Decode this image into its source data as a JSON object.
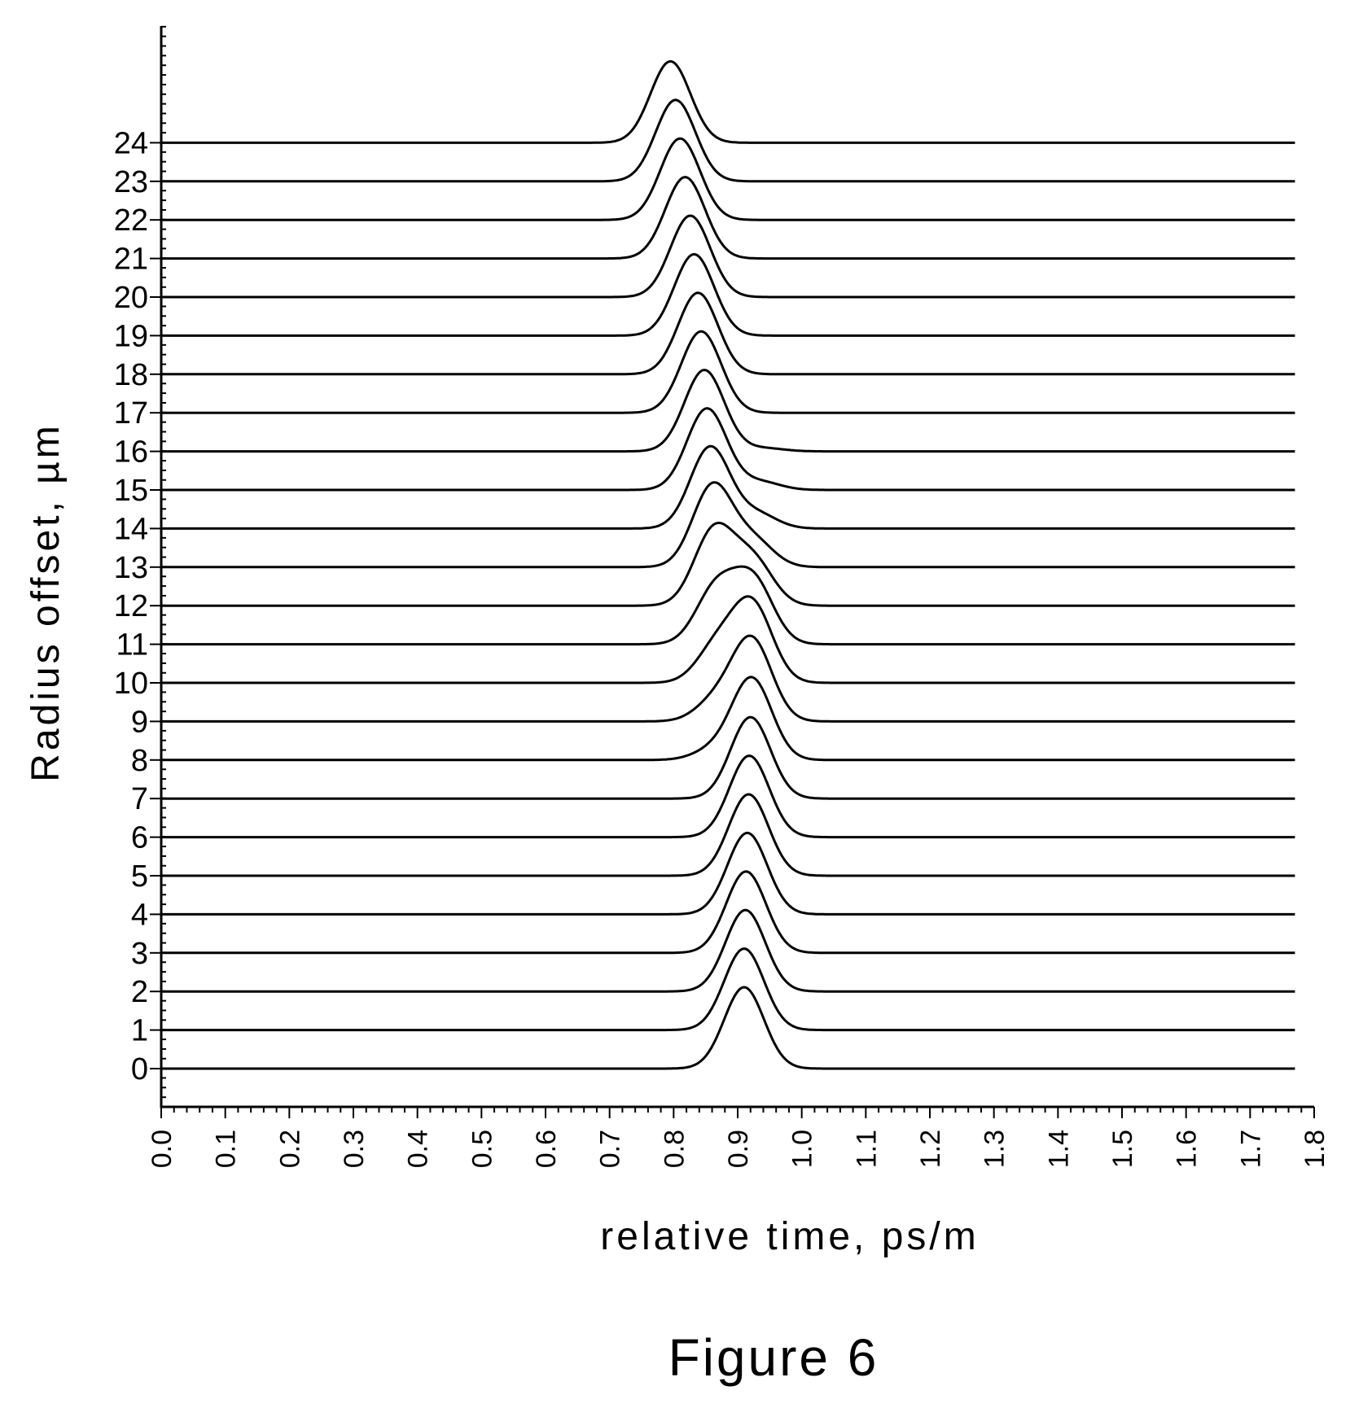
{
  "figure": {
    "caption": "Figure 6"
  },
  "chart_data": {
    "type": "line",
    "title": "",
    "xlabel": "relative time, ps/m",
    "ylabel": "Radius offset, µm",
    "xlim": [
      0.0,
      1.8
    ],
    "x_ticks": [
      "0.0",
      "0.1",
      "0.2",
      "0.3",
      "0.4",
      "0.5",
      "0.6",
      "0.7",
      "0.8",
      "0.9",
      "1.0",
      "1.1",
      "1.2",
      "1.3",
      "1.4",
      "1.5",
      "1.6",
      "1.7",
      "1.8"
    ],
    "y_ticks": [
      "0",
      "1",
      "2",
      "3",
      "4",
      "5",
      "6",
      "7",
      "8",
      "9",
      "10",
      "11",
      "12",
      "13",
      "14",
      "15",
      "16",
      "17",
      "18",
      "19",
      "20",
      "21",
      "22",
      "23",
      "24"
    ],
    "grid": false,
    "legend": "none",
    "trace_x_range": [
      0.0,
      1.77
    ],
    "series": [
      {
        "offset": 0,
        "peaks": [
          {
            "t": 0.91,
            "amp": 1.0
          }
        ]
      },
      {
        "offset": 1,
        "peaks": [
          {
            "t": 0.91,
            "amp": 1.0
          }
        ]
      },
      {
        "offset": 2,
        "peaks": [
          {
            "t": 0.912,
            "amp": 1.0
          }
        ]
      },
      {
        "offset": 3,
        "peaks": [
          {
            "t": 0.913,
            "amp": 1.0
          }
        ]
      },
      {
        "offset": 4,
        "peaks": [
          {
            "t": 0.915,
            "amp": 1.0
          }
        ]
      },
      {
        "offset": 5,
        "peaks": [
          {
            "t": 0.917,
            "amp": 1.0
          }
        ]
      },
      {
        "offset": 6,
        "peaks": [
          {
            "t": 0.918,
            "amp": 1.0
          }
        ]
      },
      {
        "offset": 7,
        "peaks": [
          {
            "t": 0.92,
            "amp": 1.0
          }
        ]
      },
      {
        "offset": 8,
        "peaks": [
          {
            "t": 0.922,
            "amp": 1.0
          },
          {
            "t": 0.862,
            "amp": 0.12
          }
        ]
      },
      {
        "offset": 9,
        "peaks": [
          {
            "t": 0.922,
            "amp": 1.0
          },
          {
            "t": 0.866,
            "amp": 0.25
          }
        ]
      },
      {
        "offset": 10,
        "peaks": [
          {
            "t": 0.923,
            "amp": 0.95
          },
          {
            "t": 0.868,
            "amp": 0.45
          }
        ]
      },
      {
        "offset": 11,
        "peaks": [
          {
            "t": 0.924,
            "amp": 0.78
          },
          {
            "t": 0.866,
            "amp": 0.68
          }
        ]
      },
      {
        "offset": 12,
        "peaks": [
          {
            "t": 0.924,
            "amp": 0.55
          },
          {
            "t": 0.863,
            "amp": 0.92
          }
        ]
      },
      {
        "offset": 13,
        "peaks": [
          {
            "t": 0.925,
            "amp": 0.32
          },
          {
            "t": 0.861,
            "amp": 1.0
          }
        ]
      },
      {
        "offset": 14,
        "peaks": [
          {
            "t": 0.93,
            "amp": 0.18
          },
          {
            "t": 0.857,
            "amp": 1.0
          }
        ]
      },
      {
        "offset": 15,
        "peaks": [
          {
            "t": 0.935,
            "amp": 0.1
          },
          {
            "t": 0.852,
            "amp": 1.0
          }
        ]
      },
      {
        "offset": 16,
        "peaks": [
          {
            "t": 0.94,
            "amp": 0.04
          },
          {
            "t": 0.848,
            "amp": 1.0
          }
        ]
      },
      {
        "offset": 17,
        "peaks": [
          {
            "t": 0.843,
            "amp": 1.0
          }
        ]
      },
      {
        "offset": 18,
        "peaks": [
          {
            "t": 0.838,
            "amp": 1.0
          }
        ]
      },
      {
        "offset": 19,
        "peaks": [
          {
            "t": 0.832,
            "amp": 1.0
          }
        ]
      },
      {
        "offset": 20,
        "peaks": [
          {
            "t": 0.826,
            "amp": 1.0
          }
        ]
      },
      {
        "offset": 21,
        "peaks": [
          {
            "t": 0.818,
            "amp": 1.0
          }
        ]
      },
      {
        "offset": 22,
        "peaks": [
          {
            "t": 0.81,
            "amp": 1.0
          }
        ]
      },
      {
        "offset": 23,
        "peaks": [
          {
            "t": 0.803,
            "amp": 1.0
          }
        ]
      },
      {
        "offset": 24,
        "peaks": [
          {
            "t": 0.795,
            "amp": 1.0
          }
        ]
      }
    ]
  }
}
